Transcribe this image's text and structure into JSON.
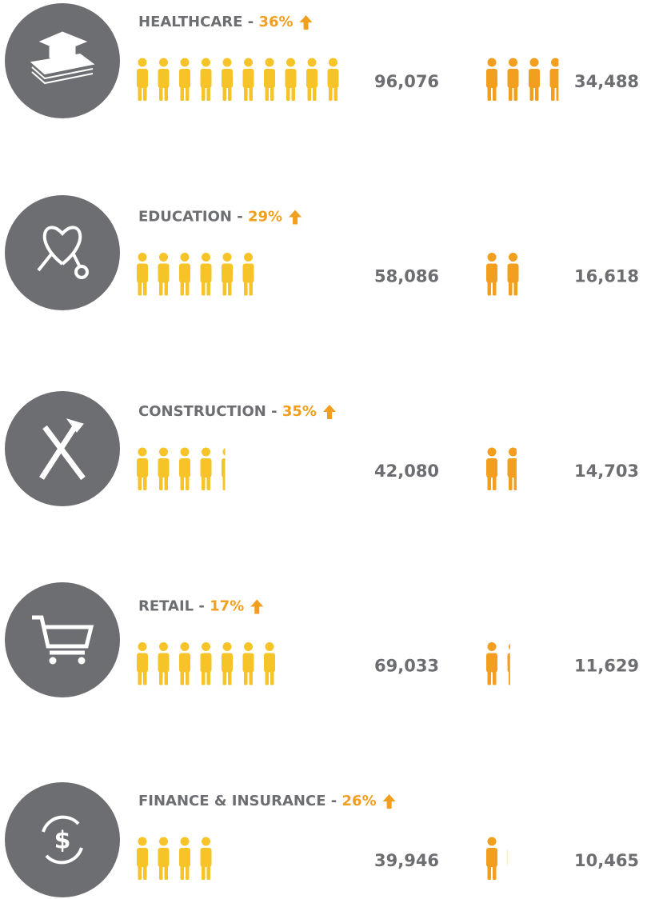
{
  "chart_data": {
    "type": "pictograph",
    "categories": [
      "HEALTHCARE -",
      "EDUCATION  -",
      "CONSTRUCTION -",
      "RETAIL -",
      "FINANCE & INSURANCE -"
    ],
    "growth": {
      "values": [
        36,
        29,
        35,
        17,
        26
      ],
      "value_labels": [
        "36%",
        "29%",
        "35%",
        "17%",
        "26%"
      ],
      "color": "#f29f1f"
    },
    "series": [
      {
        "color": "#f6c428",
        "values": [
          96076,
          58086,
          42080,
          69033,
          39946
        ],
        "value_labels": [
          "96,076",
          "58,086",
          "42,080",
          "69,033",
          "39,946"
        ]
      },
      {
        "color": "#f29f1f",
        "values": [
          34488,
          16618,
          14703,
          11629,
          10465
        ],
        "value_labels": [
          "34,488",
          "16,618",
          "14,703",
          "11,629",
          "10,465"
        ]
      }
    ]
  }
}
